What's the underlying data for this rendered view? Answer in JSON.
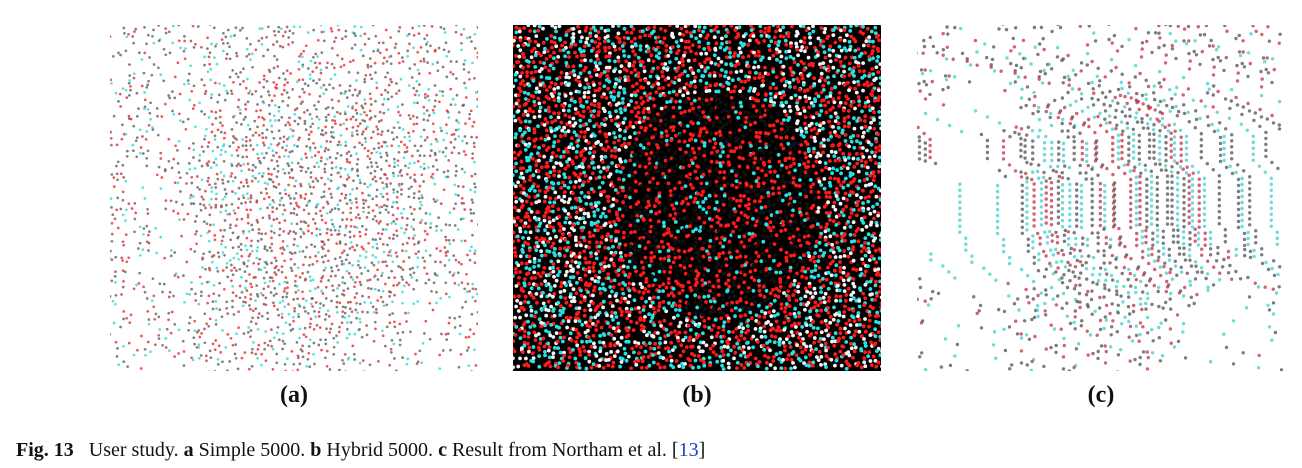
{
  "panels": [
    {
      "id": "a",
      "label": "(a)",
      "style": "simple-stipple-light",
      "background": "#ffffff",
      "dot_colors": [
        "#e02020",
        "#22d6d6",
        "#555555"
      ]
    },
    {
      "id": "b",
      "label": "(b)",
      "style": "hybrid-stipple-dark",
      "background": "#000000",
      "dot_colors": [
        "#ff1a1a",
        "#2ae0e0",
        "#1a1a1a"
      ]
    },
    {
      "id": "c",
      "label": "(c)",
      "style": "northam-stipple-soft",
      "background": "#ffffff",
      "dot_colors": [
        "#c0203a",
        "#30cccc",
        "#444444"
      ]
    }
  ],
  "caption": {
    "fig": "Fig. 13",
    "text1": "User study.",
    "a_key": "a",
    "a_text": "Simple 5000.",
    "b_key": "b",
    "b_text": "Hybrid 5000.",
    "c_key": "c",
    "c_text": "Result from Northam et al.",
    "ref_open": "[",
    "ref": "13",
    "ref_close": "]"
  }
}
